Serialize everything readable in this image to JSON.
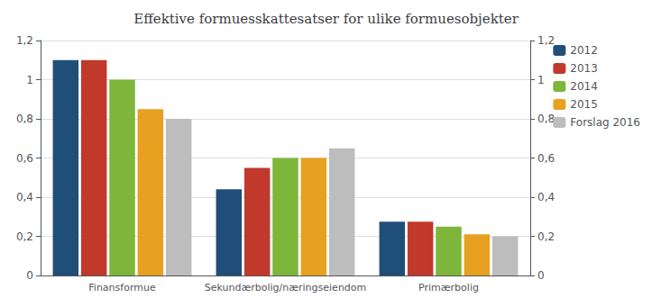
{
  "chart_data": {
    "type": "bar",
    "title": "Effektive formuesskattesatser for ulike formuesobjekter",
    "categories": [
      "Finansformue",
      "Sekundærbolig/næringseiendom",
      "Primærbolig"
    ],
    "series": [
      {
        "name": "2012",
        "color": "#1F4E79",
        "values": [
          1.1,
          0.44,
          0.275
        ]
      },
      {
        "name": "2013",
        "color": "#C0392B",
        "values": [
          1.1,
          0.55,
          0.275
        ]
      },
      {
        "name": "2014",
        "color": "#7DB63A",
        "values": [
          1.0,
          0.6,
          0.25
        ]
      },
      {
        "name": "2015",
        "color": "#E8A020",
        "values": [
          0.85,
          0.6,
          0.21
        ]
      },
      {
        "name": "Forslag 2016",
        "color": "#BDBDBD",
        "values": [
          0.8,
          0.65,
          0.2
        ]
      }
    ],
    "ylim": [
      0,
      1.2
    ],
    "yticks": [
      0,
      {
        "value": 0.2,
        "label": "0,2"
      },
      {
        "value": 0.4,
        "label": "0,4"
      },
      {
        "value": 0.6,
        "label": "0,6"
      },
      {
        "value": 0.8,
        "label": "0,8"
      },
      1,
      {
        "value": 1.2,
        "label": "1,2"
      }
    ],
    "y2lim": [
      0,
      1.2
    ],
    "y2ticks": [
      0,
      {
        "value": 0.2,
        "label": "0,2"
      },
      {
        "value": 0.4,
        "label": "0,4"
      },
      {
        "value": 0.6,
        "label": "0,6"
      },
      {
        "value": 0.8,
        "label": "0,8"
      },
      1,
      {
        "value": 1.2,
        "label": "1,2"
      }
    ],
    "grid": true,
    "legend": "upper right"
  }
}
